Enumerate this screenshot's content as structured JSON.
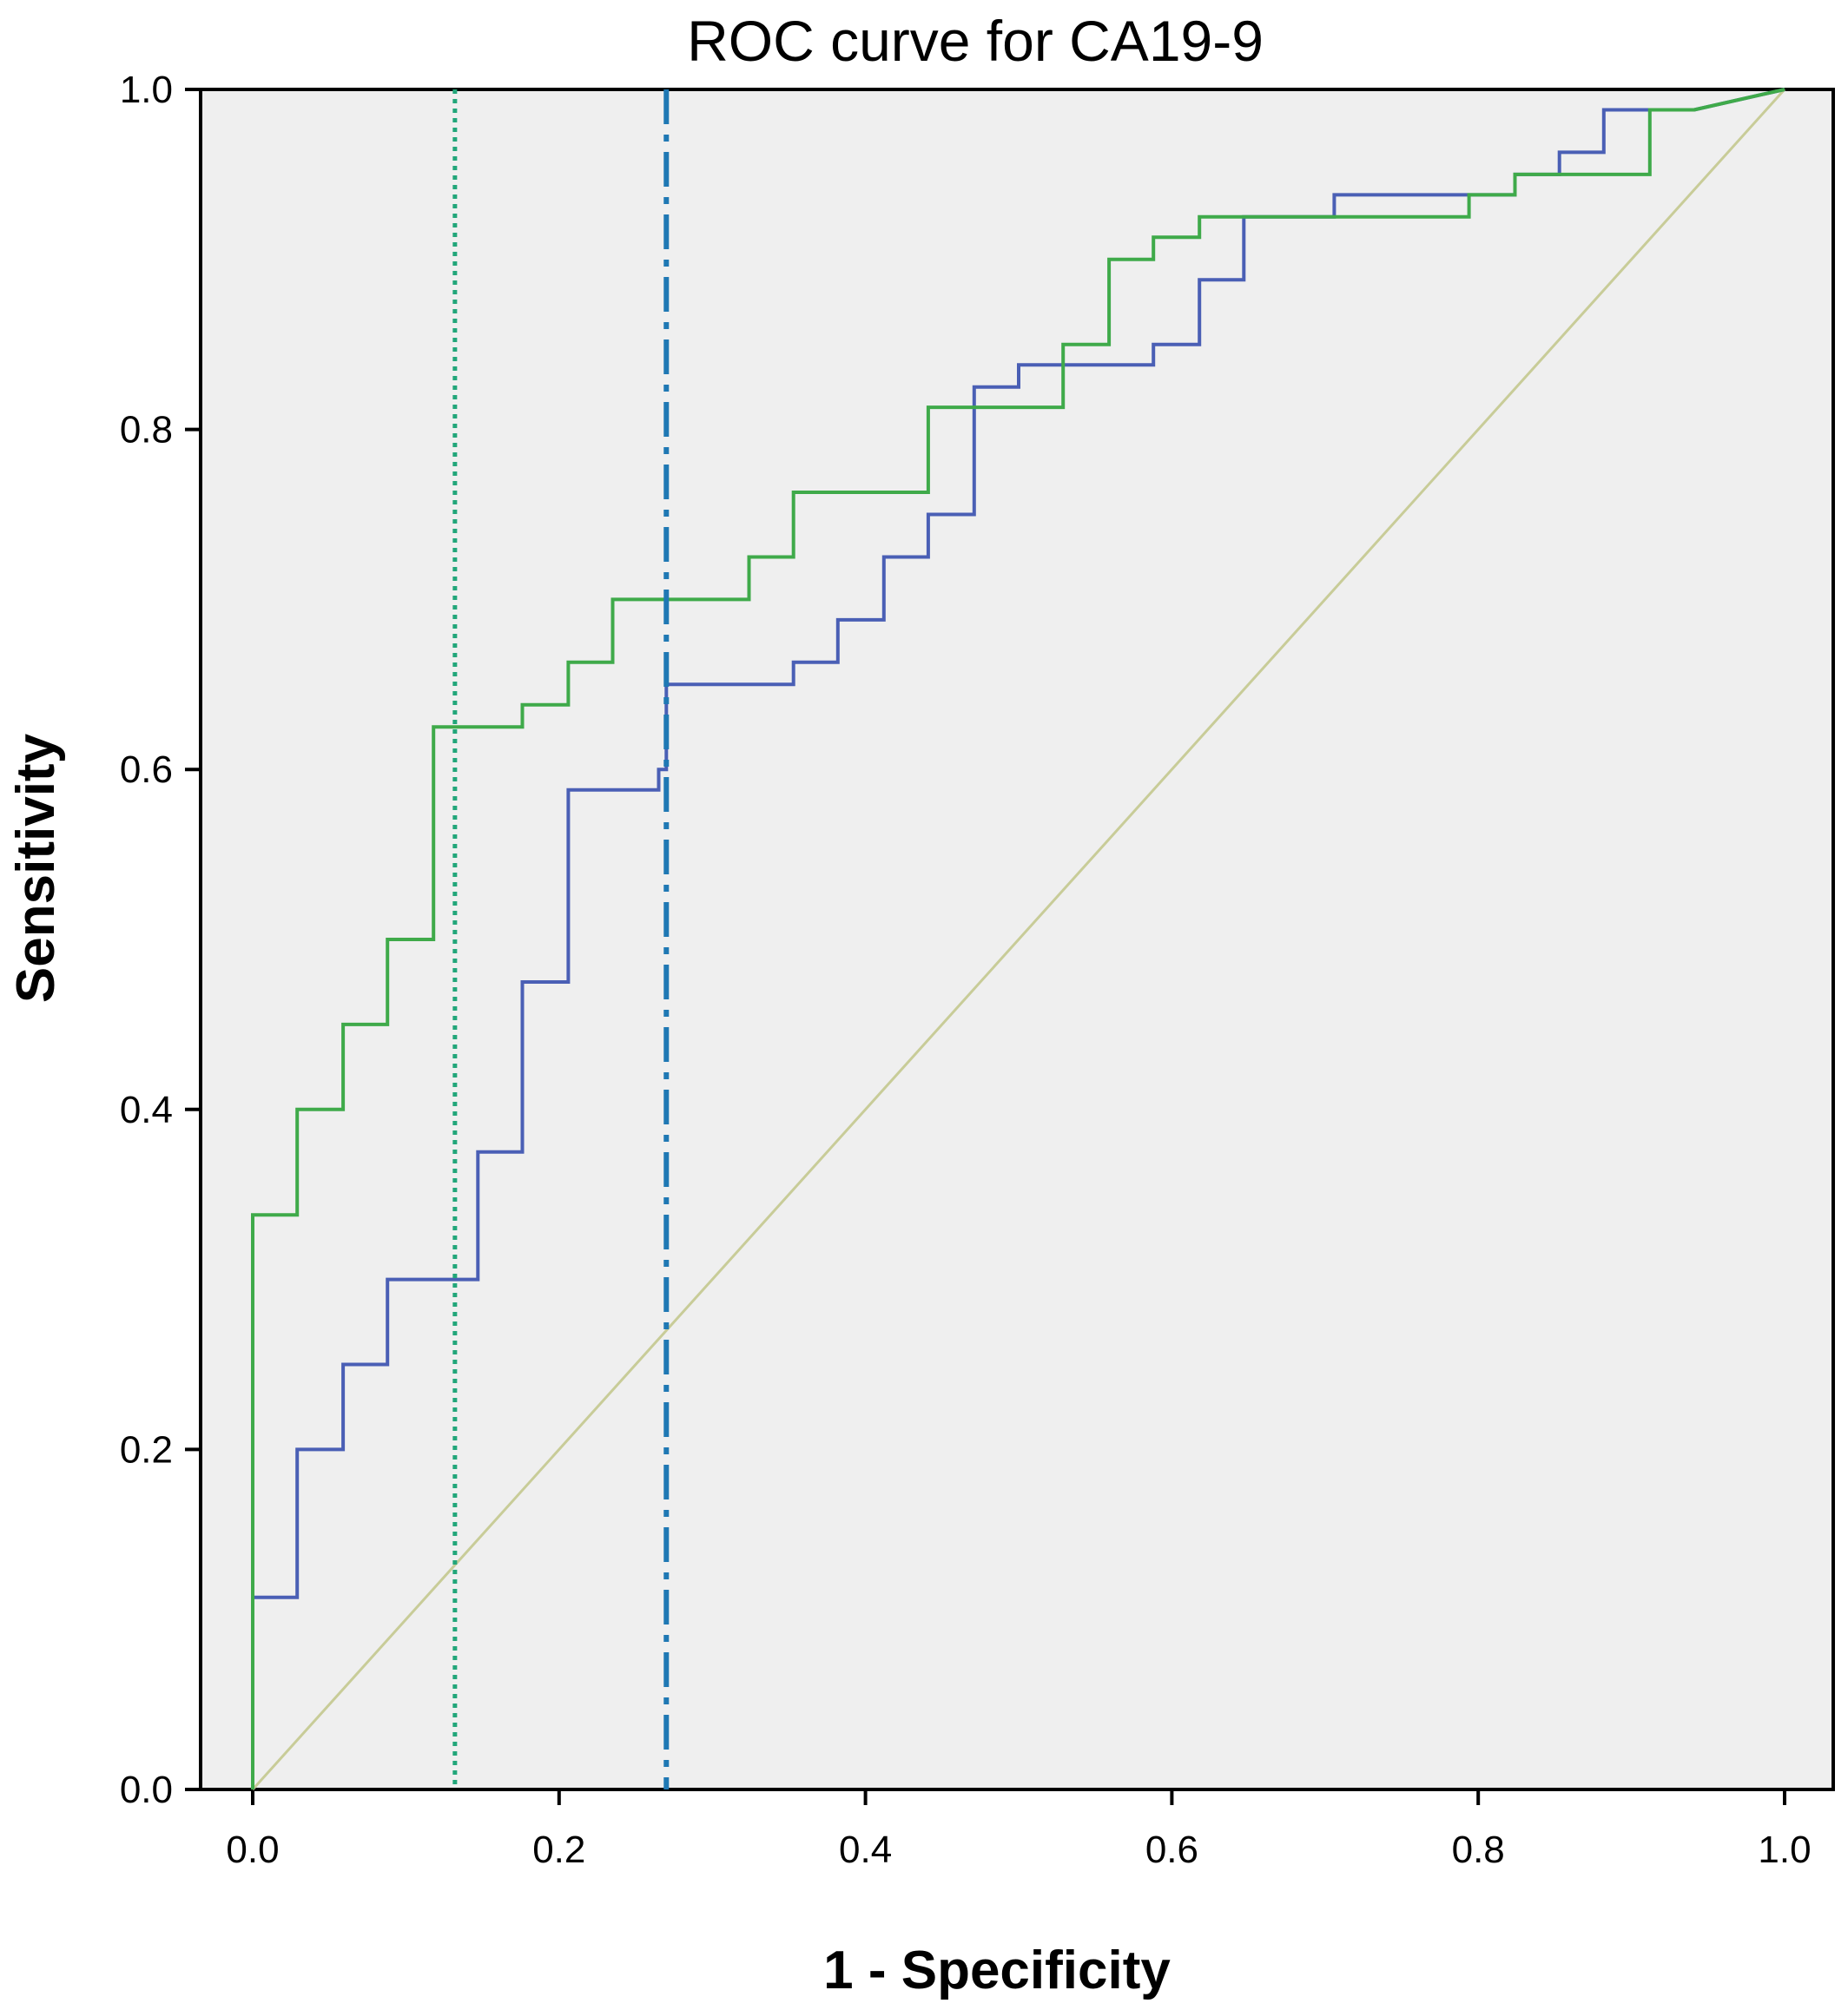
{
  "chart_data": {
    "type": "line",
    "title": "ROC curve for CA19-9",
    "xlabel": "1 - Specificity",
    "ylabel": "Sensitivity",
    "xlim": [
      0,
      1
    ],
    "ylim": [
      0,
      1
    ],
    "x_ticks": [
      "0.0",
      "0.2",
      "0.4",
      "0.6",
      "0.8",
      "1.0"
    ],
    "y_ticks": [
      "0.0",
      "0.2",
      "0.4",
      "0.6",
      "0.8",
      "1.0"
    ],
    "grid": false,
    "legend": "none",
    "colors": {
      "plot_background": "#efefef",
      "reference_line": "#c8cc98",
      "vertical_dotted": "#22a67a",
      "vertical_dashdot": "#1f78b4"
    },
    "series": [
      {
        "color": "#4a5fb5",
        "step": true,
        "x": [
          0.0,
          0.0,
          0.029,
          0.029,
          0.059,
          0.059,
          0.088,
          0.088,
          0.147,
          0.147,
          0.176,
          0.176,
          0.206,
          0.206,
          0.265,
          0.265,
          0.27,
          0.27,
          0.353,
          0.353,
          0.382,
          0.382,
          0.412,
          0.412,
          0.441,
          0.441,
          0.471,
          0.471,
          0.5,
          0.5,
          0.588,
          0.588,
          0.618,
          0.618,
          0.647,
          0.647,
          0.706,
          0.706,
          0.794,
          0.794,
          0.824,
          0.824,
          0.853,
          0.853,
          0.882,
          0.882,
          0.912,
          0.912,
          0.941,
          1.0
        ],
        "y": [
          0.0,
          0.113,
          0.113,
          0.2,
          0.2,
          0.25,
          0.25,
          0.3,
          0.3,
          0.375,
          0.375,
          0.475,
          0.475,
          0.588,
          0.588,
          0.6,
          0.6,
          0.65,
          0.65,
          0.663,
          0.663,
          0.688,
          0.688,
          0.725,
          0.725,
          0.75,
          0.75,
          0.825,
          0.825,
          0.838,
          0.838,
          0.85,
          0.85,
          0.888,
          0.888,
          0.925,
          0.925,
          0.938,
          0.938,
          0.938,
          0.938,
          0.95,
          0.95,
          0.963,
          0.963,
          0.988,
          0.988,
          0.988,
          0.988,
          1.0
        ]
      },
      {
        "color": "#3faa4a",
        "step": true,
        "x": [
          0.0,
          0.0,
          0.029,
          0.029,
          0.059,
          0.059,
          0.088,
          0.088,
          0.118,
          0.118,
          0.176,
          0.176,
          0.206,
          0.206,
          0.235,
          0.235,
          0.324,
          0.324,
          0.353,
          0.353,
          0.441,
          0.441,
          0.529,
          0.529,
          0.559,
          0.559,
          0.588,
          0.588,
          0.618,
          0.618,
          0.706,
          0.706,
          0.794,
          0.794,
          0.824,
          0.824,
          0.912,
          0.912,
          0.941,
          1.0
        ],
        "y": [
          0.0,
          0.338,
          0.338,
          0.4,
          0.4,
          0.45,
          0.45,
          0.5,
          0.5,
          0.625,
          0.625,
          0.638,
          0.638,
          0.663,
          0.663,
          0.7,
          0.7,
          0.725,
          0.725,
          0.763,
          0.763,
          0.813,
          0.813,
          0.85,
          0.85,
          0.9,
          0.9,
          0.913,
          0.913,
          0.925,
          0.925,
          0.925,
          0.925,
          0.938,
          0.938,
          0.95,
          0.95,
          0.988,
          0.988,
          1.0
        ]
      },
      {
        "color": "#c8cc98",
        "step": false,
        "x": [
          0.0,
          1.0
        ],
        "y": [
          0.0,
          1.0
        ]
      }
    ],
    "vertical_lines": [
      {
        "x": 0.132,
        "style": "dotted",
        "color": "#22a67a"
      },
      {
        "x": 0.27,
        "style": "dash-dot",
        "color": "#1f78b4"
      }
    ]
  }
}
